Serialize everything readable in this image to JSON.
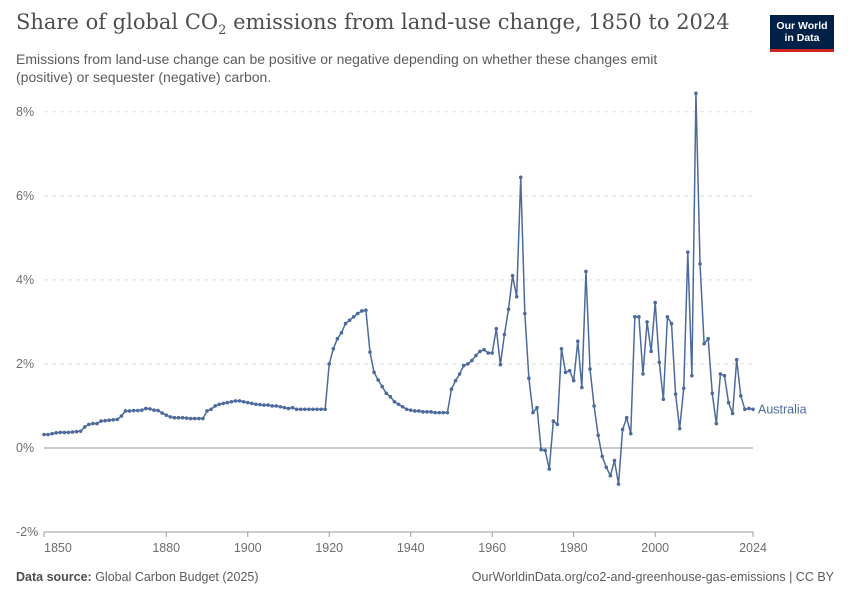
{
  "header": {
    "title_main": "Share of global CO",
    "title_sub": "2",
    "title_rest": " emissions from land-use change, 1850 to 2024",
    "subtitle": "Emissions from land-use change can be positive or negative depending on whether these changes emit (positive) or sequester (negative) carbon."
  },
  "logo": {
    "line1": "Our World",
    "line2": "in Data",
    "bg_color": "#002147",
    "accent_color": "#ce261e"
  },
  "footer": {
    "source_label": "Data source:",
    "source_value": " Global Carbon Budget (2025)",
    "right": "OurWorldinData.org/co2-and-greenhouse-gas-emissions | CC BY"
  },
  "chart_data": {
    "type": "line",
    "title": "Share of global CO₂ emissions from land-use change, 1850 to 2024",
    "subtitle": "Emissions from land-use change can be positive or negative depending on whether these changes emit (positive) or sequester (negative) carbon.",
    "xlim": [
      1850,
      2024
    ],
    "ylim": [
      -2,
      8.4
    ],
    "x_ticks": [
      1850,
      1880,
      1900,
      1920,
      1940,
      1960,
      1980,
      2000,
      2024
    ],
    "y_ticks": [
      -2,
      0,
      2,
      4,
      6,
      8
    ],
    "y_tick_labels": [
      "-2%",
      "0%",
      "2%",
      "4%",
      "6%",
      "8%"
    ],
    "grid": "horizontal-dashed",
    "line_color": "#4c6a9c",
    "series": [
      {
        "name": "Australia",
        "start_year": 1850,
        "values": [
          0.32,
          0.32,
          0.34,
          0.36,
          0.37,
          0.37,
          0.37,
          0.38,
          0.39,
          0.4,
          0.5,
          0.56,
          0.58,
          0.58,
          0.64,
          0.65,
          0.66,
          0.67,
          0.68,
          0.76,
          0.88,
          0.88,
          0.89,
          0.89,
          0.9,
          0.94,
          0.93,
          0.9,
          0.89,
          0.83,
          0.78,
          0.74,
          0.72,
          0.72,
          0.72,
          0.71,
          0.7,
          0.7,
          0.7,
          0.7,
          0.88,
          0.92,
          1.0,
          1.04,
          1.06,
          1.08,
          1.1,
          1.12,
          1.12,
          1.1,
          1.08,
          1.06,
          1.04,
          1.03,
          1.02,
          1.02,
          1.0,
          1.0,
          0.98,
          0.96,
          0.94,
          0.96,
          0.92,
          0.92,
          0.92,
          0.92,
          0.92,
          0.92,
          0.92,
          0.92,
          2.0,
          2.36,
          2.6,
          2.74,
          2.96,
          3.04,
          3.12,
          3.2,
          3.26,
          3.28,
          2.28,
          1.8,
          1.62,
          1.46,
          1.3,
          1.22,
          1.1,
          1.04,
          0.98,
          0.92,
          0.9,
          0.88,
          0.88,
          0.86,
          0.86,
          0.86,
          0.84,
          0.84,
          0.84,
          0.84,
          1.4,
          1.6,
          1.76,
          1.96,
          2.0,
          2.08,
          2.2,
          2.3,
          2.34,
          2.26,
          2.26,
          2.84,
          1.98,
          2.7,
          3.3,
          4.1,
          3.6,
          6.44,
          3.2,
          1.66,
          0.84,
          0.96,
          -0.04,
          -0.06,
          -0.5,
          0.64,
          0.56,
          2.36,
          1.8,
          1.84,
          1.6,
          2.54,
          1.44,
          4.2,
          1.88,
          1.0,
          0.3,
          -0.2,
          -0.46,
          -0.66,
          -0.3,
          -0.86,
          0.44,
          0.72,
          0.34,
          3.12,
          3.12,
          1.76,
          3.0,
          2.3,
          3.46,
          2.04,
          1.16,
          3.12,
          2.96,
          1.28,
          0.46,
          1.42,
          4.66,
          1.72,
          8.44,
          4.38,
          2.48,
          2.6,
          1.3,
          0.58,
          1.76,
          1.72,
          1.08,
          0.82,
          2.1,
          1.24,
          0.92,
          0.94,
          0.92
        ]
      }
    ]
  }
}
